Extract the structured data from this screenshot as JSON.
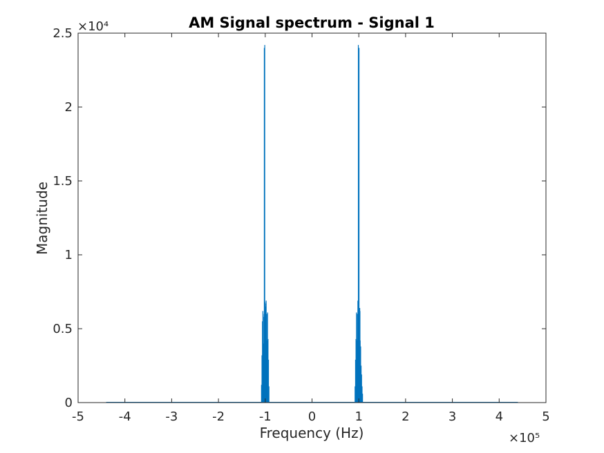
{
  "chart_data": {
    "type": "line",
    "title": "AM Signal spectrum - Signal  1",
    "xlabel": "Frequency (Hz)",
    "ylabel": "Magnitude",
    "xlim": [
      -500000,
      500000
    ],
    "ylim": [
      0,
      25000
    ],
    "x_exponent": "×10⁵",
    "y_exponent": "×10⁴",
    "xticks": [
      -5,
      -4,
      -3,
      -2,
      -1,
      0,
      1,
      2,
      3,
      4,
      5
    ],
    "yticks": [
      0,
      0.5,
      1,
      1.5,
      2,
      2.5
    ],
    "grid": false,
    "line_color": "#0072bd",
    "data_extent_x": [
      -440000,
      440000
    ],
    "series": [
      {
        "x": [
          -108000,
          -107000,
          -106000,
          -105000,
          -104000,
          -103000,
          -102500,
          -102000,
          -101500,
          -101000,
          -100500,
          -100000,
          -99500,
          -99000,
          -98500,
          -98000,
          -97500,
          -97000,
          -96000,
          -95000,
          -94000,
          -93000,
          -92000,
          92000,
          93000,
          94000,
          95000,
          96000,
          97000,
          97500,
          98000,
          98500,
          99000,
          99500,
          100000,
          100500,
          101000,
          101500,
          102000,
          102500,
          103000,
          104000,
          105000,
          106000,
          107000,
          108000
        ],
        "y": [
          1200,
          3200,
          5500,
          6200,
          4000,
          5800,
          6000,
          24000,
          18500,
          24200,
          6800,
          5600,
          6500,
          6000,
          6700,
          6900,
          5400,
          6000,
          4200,
          6100,
          4300,
          2900,
          1100,
          1100,
          2900,
          4300,
          6100,
          4200,
          6000,
          5400,
          6900,
          6700,
          24200,
          12500,
          9500,
          24000,
          6000,
          5800,
          6400,
          6200,
          4200,
          3800,
          2500,
          1900,
          1100,
          600
        ]
      }
    ]
  }
}
